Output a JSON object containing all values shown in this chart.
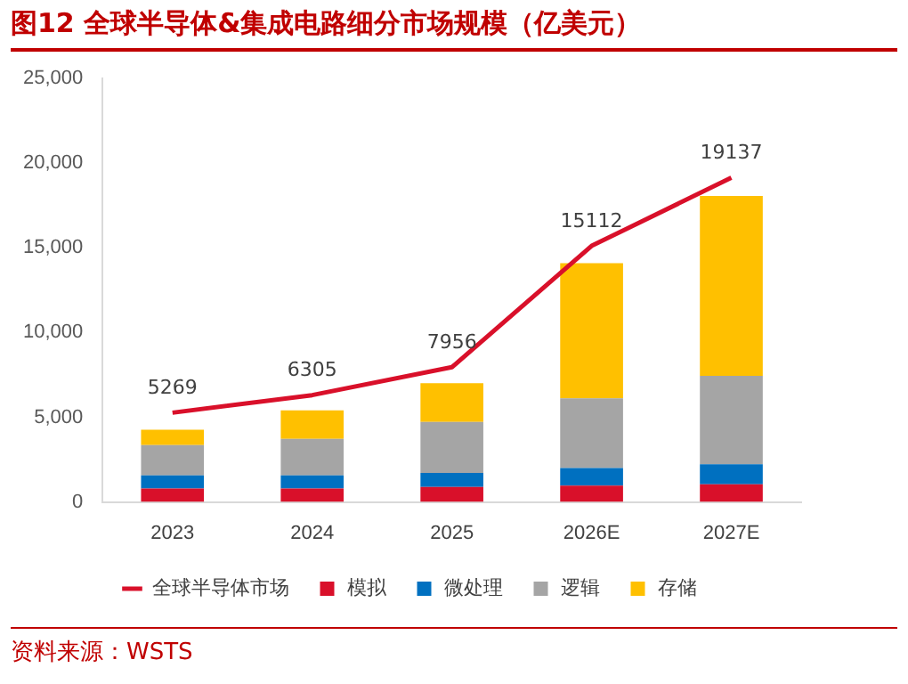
{
  "chart_data": {
    "type": "bar",
    "title": "图12  全球半导体&集成电路细分市场规模（亿美元）",
    "categories": [
      "2023",
      "2024",
      "2025",
      "2026E",
      "2027E"
    ],
    "stacked": true,
    "ylim": [
      0,
      25000
    ],
    "yticks": [
      {
        "value": 0,
        "label": "0"
      },
      {
        "value": 5000,
        "label": "5,000"
      },
      {
        "value": 10000,
        "label": "10,000"
      },
      {
        "value": 15000,
        "label": "15,000"
      },
      {
        "value": 20000,
        "label": "20,000"
      },
      {
        "value": 25000,
        "label": "25,000"
      }
    ],
    "grid": false,
    "legend": "bottom",
    "annotations": [
      "资料来源：WSTS"
    ],
    "series": [
      {
        "name": "模拟",
        "color": "#d9102a",
        "values": [
          790,
          790,
          890,
          970,
          1040
        ]
      },
      {
        "name": "微处理",
        "color": "#0070c0",
        "values": [
          780,
          780,
          830,
          1030,
          1180
        ]
      },
      {
        "name": "逻辑",
        "color": "#a5a5a5",
        "values": [
          1790,
          2150,
          3000,
          4120,
          5220
        ]
      },
      {
        "name": "存储",
        "color": "#ffc000",
        "values": [
          900,
          1680,
          2290,
          7970,
          10620
        ]
      },
      {
        "name": "全球半导体市场",
        "type": "line",
        "color": "#d9102a",
        "values": [
          5269,
          6305,
          7956,
          15112,
          19137
        ],
        "value_labels": [
          "5269",
          "6305",
          "7956",
          "15112",
          "19137"
        ]
      }
    ]
  }
}
